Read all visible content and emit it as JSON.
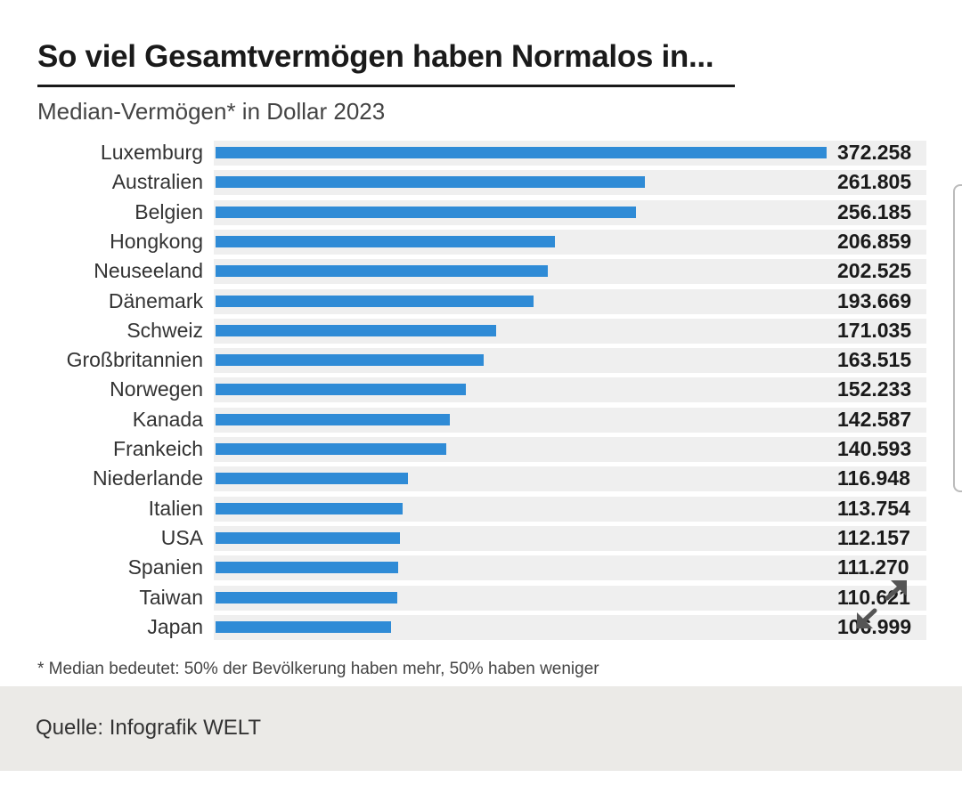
{
  "chart_data": {
    "type": "bar",
    "orientation": "horizontal",
    "title": "So viel Gesamtvermögen haben Normalos in...",
    "subtitle": "Median-Vermögen* in Dollar 2023",
    "categories": [
      "Luxemburg",
      "Australien",
      "Belgien",
      "Hongkong",
      "Neuseeland",
      "Dänemark",
      "Schweiz",
      "Großbritannien",
      "Norwegen",
      "Kanada",
      "Frankeich",
      "Niederlande",
      "Italien",
      "USA",
      "Spanien",
      "Taiwan",
      "Japan"
    ],
    "values": [
      372258,
      261805,
      256185,
      206859,
      202525,
      193669,
      171035,
      163515,
      152233,
      142587,
      140593,
      116948,
      113754,
      112157,
      111270,
      110621,
      106999
    ],
    "value_labels": [
      "372.258",
      "261.805",
      "256.185",
      "206.859",
      "202.525",
      "193.669",
      "171.035",
      "163.515",
      "152.233",
      "142.587",
      "140.593",
      "116.948",
      "113.754",
      "112.157",
      "111.270",
      "110.621",
      "106.999"
    ],
    "xlim": [
      0,
      372258
    ],
    "bar_color": "#2f8bd6",
    "row_background": "#efefef",
    "footnote": "* Median bedeutet: 50% der Bevölkerung haben mehr, 50% haben weniger"
  },
  "caption": {
    "text": "Quelle: Infografik WELT"
  },
  "controls": {
    "expand_icon": "expand-arrows-icon"
  }
}
